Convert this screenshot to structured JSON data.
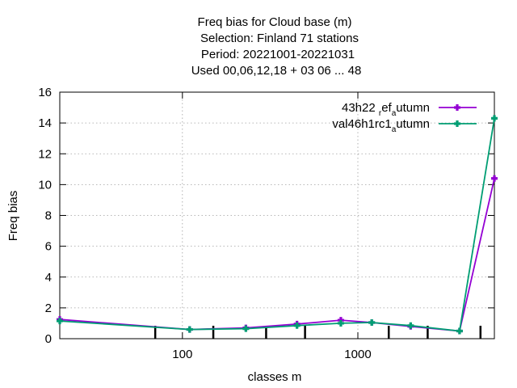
{
  "chart_data": {
    "type": "line",
    "title_lines": [
      "Freq bias  for Cloud base (m)",
      "Selection: Finland     71 stations",
      "Period: 20221001-20221031",
      "Used  00,06,12,18  + 03 06 ... 48"
    ],
    "xlabel": "classes m",
    "ylabel": "Freq bias",
    "xscale": "log",
    "xlim": [
      20,
      6000
    ],
    "ylim": [
      0,
      16
    ],
    "yticks": [
      0,
      2,
      4,
      6,
      8,
      10,
      12,
      14,
      16
    ],
    "xticks": [
      100,
      1000
    ],
    "grid": true,
    "legend_position": "top-right",
    "minor_tick_x": [
      70,
      150,
      300,
      500,
      1500,
      2500,
      5000
    ],
    "series": [
      {
        "name": "43h22_ref_autumn",
        "legend_parts": [
          "43h22 ",
          "r",
          "ef",
          "a",
          "utumn"
        ],
        "color": "#9400d3",
        "x": [
          20,
          110,
          230,
          450,
          800,
          1200,
          2000,
          3800,
          6000
        ],
        "y": [
          1.25,
          0.6,
          0.7,
          0.95,
          1.2,
          1.05,
          0.8,
          0.5,
          10.4
        ]
      },
      {
        "name": "val46h1rc1_autumn",
        "legend_parts": [
          "val46h1rc1",
          "a",
          "utumn"
        ],
        "color": "#009e73",
        "x": [
          20,
          110,
          230,
          450,
          800,
          1200,
          2000,
          3800,
          6000
        ],
        "y": [
          1.15,
          0.6,
          0.65,
          0.85,
          1.0,
          1.05,
          0.85,
          0.5,
          14.3
        ]
      }
    ]
  }
}
